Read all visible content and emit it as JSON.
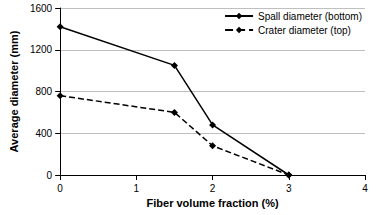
{
  "chart_data": {
    "type": "line",
    "x_label": "Fiber volume fraction (%)",
    "y_label": "Average diameter (mm)",
    "xlim": [
      0,
      4
    ],
    "xticks": [
      0,
      1,
      2,
      3,
      4
    ],
    "ylim": [
      0,
      1600
    ],
    "yticks": [
      0,
      400,
      800,
      1200,
      1600
    ],
    "grid": true,
    "legend": "upper right",
    "series": [
      {
        "name": "Spall diameter (bottom)",
        "color": "#000000",
        "marker": "diamond",
        "line_style": "solid",
        "x": [
          0,
          1.5,
          2,
          3
        ],
        "values": [
          1420,
          1050,
          480,
          0
        ]
      },
      {
        "name": "Crater diameter (top)",
        "color": "#000000",
        "marker": "diamond",
        "line_style": "dashed",
        "x": [
          0,
          1.5,
          2,
          3
        ],
        "values": [
          760,
          600,
          280,
          0
        ]
      }
    ]
  }
}
